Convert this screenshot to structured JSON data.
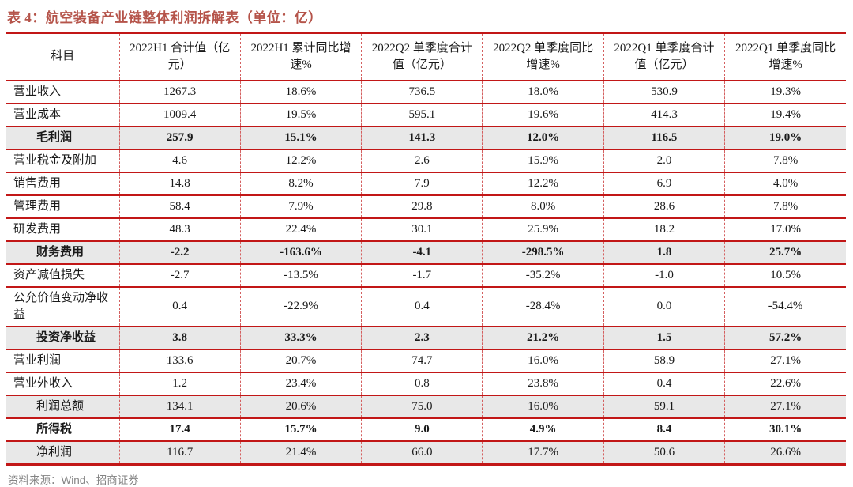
{
  "title": "表 4：航空装备产业链整体利润拆解表（单位：亿）",
  "source_note": "资料来源：Wind、招商证券",
  "colors": {
    "table_border_red": "#c21717",
    "title_red": "#b5544a",
    "shaded_row_bg": "#e8e8e8",
    "body_text": "#1a1a1a",
    "source_gray": "#848484"
  },
  "table": {
    "columns": [
      "科目",
      "2022H1 合计值（亿元）",
      "2022H1 累计同比增速%",
      "2022Q2 单季度合计值（亿元）",
      "2022Q2 单季度同比增速%",
      "2022Q1 单季度合计值（亿元）",
      "2022Q1 单季度同比增速%"
    ],
    "rows": [
      {
        "label": "营业收入",
        "values": [
          "1267.3",
          "18.6%",
          "736.5",
          "18.0%",
          "530.9",
          "19.3%"
        ],
        "bold": false,
        "shaded": false,
        "indent": false
      },
      {
        "label": "营业成本",
        "values": [
          "1009.4",
          "19.5%",
          "595.1",
          "19.6%",
          "414.3",
          "19.4%"
        ],
        "bold": false,
        "shaded": false,
        "indent": false
      },
      {
        "label": "毛利润",
        "values": [
          "257.9",
          "15.1%",
          "141.3",
          "12.0%",
          "116.5",
          "19.0%"
        ],
        "bold": true,
        "shaded": true,
        "indent": true
      },
      {
        "label": "营业税金及附加",
        "values": [
          "4.6",
          "12.2%",
          "2.6",
          "15.9%",
          "2.0",
          "7.8%"
        ],
        "bold": false,
        "shaded": false,
        "indent": false
      },
      {
        "label": "销售费用",
        "values": [
          "14.8",
          "8.2%",
          "7.9",
          "12.2%",
          "6.9",
          "4.0%"
        ],
        "bold": false,
        "shaded": false,
        "indent": false
      },
      {
        "label": "管理费用",
        "values": [
          "58.4",
          "7.9%",
          "29.8",
          "8.0%",
          "28.6",
          "7.8%"
        ],
        "bold": false,
        "shaded": false,
        "indent": false
      },
      {
        "label": "研发费用",
        "values": [
          "48.3",
          "22.4%",
          "30.1",
          "25.9%",
          "18.2",
          "17.0%"
        ],
        "bold": false,
        "shaded": false,
        "indent": false
      },
      {
        "label": "财务费用",
        "values": [
          "-2.2",
          "-163.6%",
          "-4.1",
          "-298.5%",
          "1.8",
          "25.7%"
        ],
        "bold": true,
        "shaded": true,
        "indent": true
      },
      {
        "label": "资产减值损失",
        "values": [
          "-2.7",
          "-13.5%",
          "-1.7",
          "-35.2%",
          "-1.0",
          "10.5%"
        ],
        "bold": false,
        "shaded": false,
        "indent": false
      },
      {
        "label": "公允价值变动净收益",
        "values": [
          "0.4",
          "-22.9%",
          "0.4",
          "-28.4%",
          "0.0",
          "-54.4%"
        ],
        "bold": false,
        "shaded": false,
        "indent": false
      },
      {
        "label": "投资净收益",
        "values": [
          "3.8",
          "33.3%",
          "2.3",
          "21.2%",
          "1.5",
          "57.2%"
        ],
        "bold": true,
        "shaded": true,
        "indent": true
      },
      {
        "label": "营业利润",
        "values": [
          "133.6",
          "20.7%",
          "74.7",
          "16.0%",
          "58.9",
          "27.1%"
        ],
        "bold": false,
        "shaded": false,
        "indent": false
      },
      {
        "label": "营业外收入",
        "values": [
          "1.2",
          "23.4%",
          "0.8",
          "23.8%",
          "0.4",
          "22.6%"
        ],
        "bold": false,
        "shaded": false,
        "indent": false
      },
      {
        "label": "利润总额",
        "values": [
          "134.1",
          "20.6%",
          "75.0",
          "16.0%",
          "59.1",
          "27.1%"
        ],
        "bold": false,
        "shaded": true,
        "indent": true
      },
      {
        "label": "所得税",
        "values": [
          "17.4",
          "15.7%",
          "9.0",
          "4.9%",
          "8.4",
          "30.1%"
        ],
        "bold": true,
        "shaded": false,
        "indent": true
      },
      {
        "label": "净利润",
        "values": [
          "116.7",
          "21.4%",
          "66.0",
          "17.7%",
          "50.6",
          "26.6%"
        ],
        "bold": false,
        "shaded": true,
        "indent": true
      }
    ]
  }
}
